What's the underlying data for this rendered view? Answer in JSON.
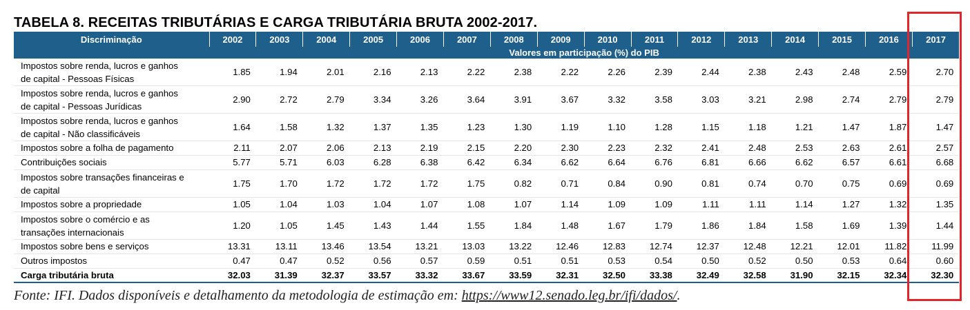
{
  "title": "TABELA 8. RECEITAS TRIBUTÁRIAS E CARGA TRIBUTÁRIA BRUTA 2002-2017.",
  "table": {
    "header_label": "Discriminação",
    "years": [
      "2002",
      "2003",
      "2004",
      "2005",
      "2006",
      "2007",
      "2008",
      "2009",
      "2010",
      "2011",
      "2012",
      "2013",
      "2014",
      "2015",
      "2016",
      "2017"
    ],
    "subheader": "Valores em participação (%) do PIB",
    "rows": [
      {
        "label_lines": [
          "Impostos sobre renda, lucros e ganhos",
          "de capital - Pessoas Físicas"
        ],
        "values": [
          "1.85",
          "1.94",
          "2.01",
          "2.16",
          "2.13",
          "2.22",
          "2.38",
          "2.22",
          "2.26",
          "2.39",
          "2.44",
          "2.38",
          "2.43",
          "2.48",
          "2.59",
          "2.70"
        ]
      },
      {
        "label_lines": [
          "Impostos sobre renda, lucros e ganhos",
          "de capital - Pessoas Jurídicas"
        ],
        "values": [
          "2.90",
          "2.72",
          "2.79",
          "3.34",
          "3.26",
          "3.64",
          "3.91",
          "3.67",
          "3.32",
          "3.58",
          "3.03",
          "3.21",
          "2.98",
          "2.74",
          "2.79",
          "2.79"
        ]
      },
      {
        "label_lines": [
          "Impostos sobre renda, lucros e ganhos",
          "de capital - Não classificáveis"
        ],
        "values": [
          "1.64",
          "1.58",
          "1.32",
          "1.37",
          "1.35",
          "1.23",
          "1.30",
          "1.19",
          "1.10",
          "1.28",
          "1.15",
          "1.18",
          "1.21",
          "1.47",
          "1.87",
          "1.47"
        ]
      },
      {
        "label_lines": [
          "Impostos sobre a folha de pagamento"
        ],
        "values": [
          "2.11",
          "2.07",
          "2.06",
          "2.13",
          "2.19",
          "2.15",
          "2.20",
          "2.30",
          "2.23",
          "2.32",
          "2.41",
          "2.48",
          "2.53",
          "2.63",
          "2.61",
          "2.57"
        ]
      },
      {
        "label_lines": [
          "Contribuições sociais"
        ],
        "values": [
          "5.77",
          "5.71",
          "6.03",
          "6.28",
          "6.38",
          "6.42",
          "6.34",
          "6.62",
          "6.64",
          "6.76",
          "6.81",
          "6.66",
          "6.62",
          "6.57",
          "6.61",
          "6.68"
        ]
      },
      {
        "label_lines": [
          "Impostos sobre transações financeiras e",
          "de capital"
        ],
        "values": [
          "1.75",
          "1.70",
          "1.72",
          "1.72",
          "1.72",
          "1.75",
          "0.82",
          "0.71",
          "0.84",
          "0.90",
          "0.81",
          "0.74",
          "0.70",
          "0.75",
          "0.69",
          "0.69"
        ]
      },
      {
        "label_lines": [
          "Impostos sobre a propriedade"
        ],
        "values": [
          "1.05",
          "1.04",
          "1.03",
          "1.04",
          "1.07",
          "1.08",
          "1.07",
          "1.14",
          "1.09",
          "1.09",
          "1.11",
          "1.11",
          "1.14",
          "1.27",
          "1.32",
          "1.35"
        ]
      },
      {
        "label_lines": [
          "Impostos sobre o comércio e as",
          "transações internacionais"
        ],
        "values": [
          "1.20",
          "1.05",
          "1.45",
          "1.43",
          "1.44",
          "1.55",
          "1.84",
          "1.48",
          "1.67",
          "1.79",
          "1.86",
          "1.84",
          "1.58",
          "1.69",
          "1.39",
          "1.44"
        ]
      },
      {
        "label_lines": [
          "Impostos sobre bens e serviços"
        ],
        "values": [
          "13.31",
          "13.11",
          "13.46",
          "13.54",
          "13.21",
          "13.03",
          "13.22",
          "12.46",
          "12.83",
          "12.74",
          "12.37",
          "12.48",
          "12.21",
          "12.01",
          "11.82",
          "11.99"
        ]
      },
      {
        "label_lines": [
          "Outros impostos"
        ],
        "values": [
          "0.47",
          "0.47",
          "0.52",
          "0.56",
          "0.57",
          "0.59",
          "0.51",
          "0.51",
          "0.53",
          "0.54",
          "0.50",
          "0.52",
          "0.50",
          "0.53",
          "0.64",
          "0.60"
        ]
      }
    ],
    "total": {
      "label": "Carga tributária bruta",
      "values": [
        "32.03",
        "31.39",
        "32.37",
        "33.57",
        "33.32",
        "33.67",
        "33.59",
        "32.31",
        "32.50",
        "33.38",
        "32.49",
        "32.58",
        "31.90",
        "32.15",
        "32.34",
        "32.30"
      ]
    }
  },
  "source": {
    "text": "Fonte: IFI. Dados disponíveis e detalhamento da metodologia de estimação em: ",
    "link": "https://www12.senado.leg.br/ifi/dados/",
    "suffix": "."
  },
  "colors": {
    "header_bg": "#1f5f8b",
    "highlight": "#e2252b"
  }
}
